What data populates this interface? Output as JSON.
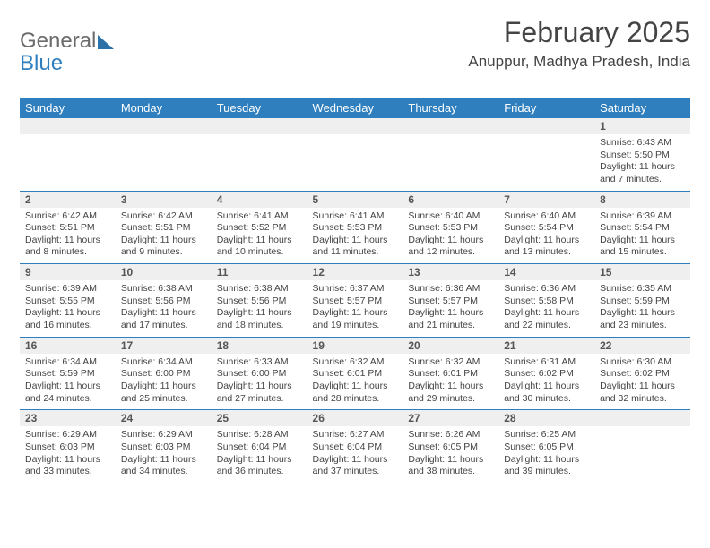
{
  "brand": {
    "part1": "General",
    "part2": "Blue"
  },
  "title": "February 2025",
  "location": "Anuppur, Madhya Pradesh, India",
  "colors": {
    "accent": "#2f7fbf",
    "header_text": "#ffffff",
    "daynum_bg": "#efefef",
    "body_bg": "#ffffff",
    "text": "#3a3a3a"
  },
  "dayHeaders": [
    "Sunday",
    "Monday",
    "Tuesday",
    "Wednesday",
    "Thursday",
    "Friday",
    "Saturday"
  ],
  "weeks": [
    [
      null,
      null,
      null,
      null,
      null,
      null,
      {
        "n": "1",
        "sr": "6:43 AM",
        "ss": "5:50 PM",
        "dl": "11 hours and 7 minutes."
      }
    ],
    [
      {
        "n": "2",
        "sr": "6:42 AM",
        "ss": "5:51 PM",
        "dl": "11 hours and 8 minutes."
      },
      {
        "n": "3",
        "sr": "6:42 AM",
        "ss": "5:51 PM",
        "dl": "11 hours and 9 minutes."
      },
      {
        "n": "4",
        "sr": "6:41 AM",
        "ss": "5:52 PM",
        "dl": "11 hours and 10 minutes."
      },
      {
        "n": "5",
        "sr": "6:41 AM",
        "ss": "5:53 PM",
        "dl": "11 hours and 11 minutes."
      },
      {
        "n": "6",
        "sr": "6:40 AM",
        "ss": "5:53 PM",
        "dl": "11 hours and 12 minutes."
      },
      {
        "n": "7",
        "sr": "6:40 AM",
        "ss": "5:54 PM",
        "dl": "11 hours and 13 minutes."
      },
      {
        "n": "8",
        "sr": "6:39 AM",
        "ss": "5:54 PM",
        "dl": "11 hours and 15 minutes."
      }
    ],
    [
      {
        "n": "9",
        "sr": "6:39 AM",
        "ss": "5:55 PM",
        "dl": "11 hours and 16 minutes."
      },
      {
        "n": "10",
        "sr": "6:38 AM",
        "ss": "5:56 PM",
        "dl": "11 hours and 17 minutes."
      },
      {
        "n": "11",
        "sr": "6:38 AM",
        "ss": "5:56 PM",
        "dl": "11 hours and 18 minutes."
      },
      {
        "n": "12",
        "sr": "6:37 AM",
        "ss": "5:57 PM",
        "dl": "11 hours and 19 minutes."
      },
      {
        "n": "13",
        "sr": "6:36 AM",
        "ss": "5:57 PM",
        "dl": "11 hours and 21 minutes."
      },
      {
        "n": "14",
        "sr": "6:36 AM",
        "ss": "5:58 PM",
        "dl": "11 hours and 22 minutes."
      },
      {
        "n": "15",
        "sr": "6:35 AM",
        "ss": "5:59 PM",
        "dl": "11 hours and 23 minutes."
      }
    ],
    [
      {
        "n": "16",
        "sr": "6:34 AM",
        "ss": "5:59 PM",
        "dl": "11 hours and 24 minutes."
      },
      {
        "n": "17",
        "sr": "6:34 AM",
        "ss": "6:00 PM",
        "dl": "11 hours and 25 minutes."
      },
      {
        "n": "18",
        "sr": "6:33 AM",
        "ss": "6:00 PM",
        "dl": "11 hours and 27 minutes."
      },
      {
        "n": "19",
        "sr": "6:32 AM",
        "ss": "6:01 PM",
        "dl": "11 hours and 28 minutes."
      },
      {
        "n": "20",
        "sr": "6:32 AM",
        "ss": "6:01 PM",
        "dl": "11 hours and 29 minutes."
      },
      {
        "n": "21",
        "sr": "6:31 AM",
        "ss": "6:02 PM",
        "dl": "11 hours and 30 minutes."
      },
      {
        "n": "22",
        "sr": "6:30 AM",
        "ss": "6:02 PM",
        "dl": "11 hours and 32 minutes."
      }
    ],
    [
      {
        "n": "23",
        "sr": "6:29 AM",
        "ss": "6:03 PM",
        "dl": "11 hours and 33 minutes."
      },
      {
        "n": "24",
        "sr": "6:29 AM",
        "ss": "6:03 PM",
        "dl": "11 hours and 34 minutes."
      },
      {
        "n": "25",
        "sr": "6:28 AM",
        "ss": "6:04 PM",
        "dl": "11 hours and 36 minutes."
      },
      {
        "n": "26",
        "sr": "6:27 AM",
        "ss": "6:04 PM",
        "dl": "11 hours and 37 minutes."
      },
      {
        "n": "27",
        "sr": "6:26 AM",
        "ss": "6:05 PM",
        "dl": "11 hours and 38 minutes."
      },
      {
        "n": "28",
        "sr": "6:25 AM",
        "ss": "6:05 PM",
        "dl": "11 hours and 39 minutes."
      },
      null
    ]
  ],
  "labels": {
    "sunrise": "Sunrise:",
    "sunset": "Sunset:",
    "daylight": "Daylight:"
  }
}
